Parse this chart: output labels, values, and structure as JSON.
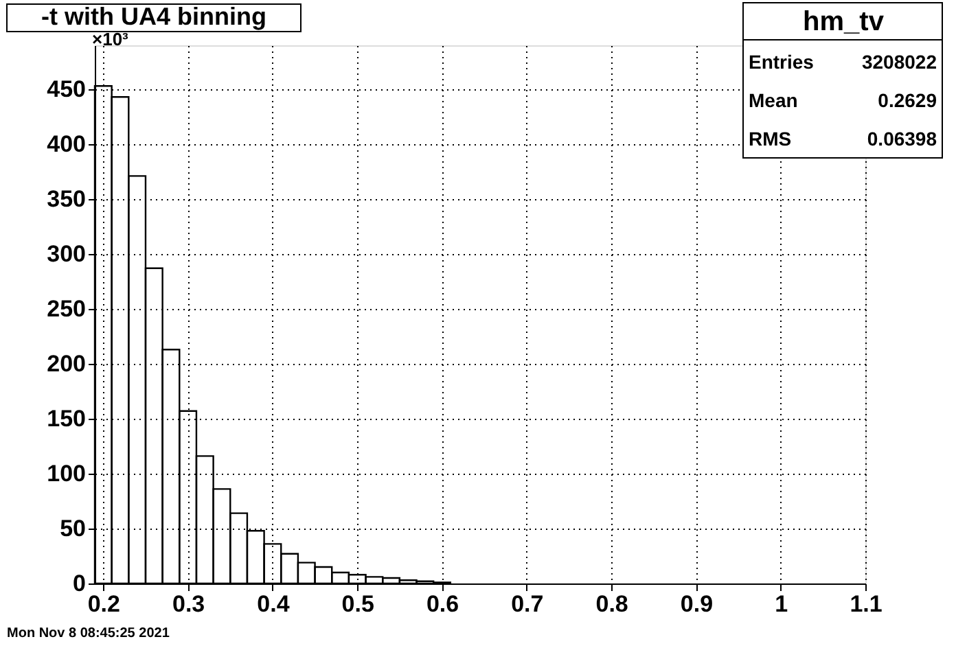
{
  "chart_data": {
    "type": "histogram",
    "title": "-t with UA4 binning",
    "bins": [
      0.19,
      0.21,
      0.23,
      0.25,
      0.27,
      0.29,
      0.31,
      0.33,
      0.35,
      0.37,
      0.39,
      0.41,
      0.43,
      0.45,
      0.47,
      0.49,
      0.51,
      0.53,
      0.55,
      0.57,
      0.59,
      0.61
    ],
    "values": [
      453,
      443,
      371,
      287,
      213,
      157,
      116,
      86,
      64,
      48,
      36,
      27,
      19,
      15,
      10,
      8,
      6,
      5,
      3,
      2,
      1
    ],
    "color": "#000000",
    "xlim": [
      0.19,
      1.1
    ],
    "xticks": [
      0.2,
      0.3,
      0.4,
      0.5,
      0.6,
      0.7,
      0.8,
      0.9,
      1,
      1.1
    ],
    "ylim": [
      0,
      490
    ],
    "yticks": [
      0,
      50,
      100,
      150,
      200,
      250,
      300,
      350,
      400,
      450
    ],
    "grid": true,
    "annotations": [
      "×10³",
      "hm_tv",
      "Entries",
      "3208022",
      "Mean",
      "0.2629",
      "RMS",
      "0.06398",
      "Mon Nov  8 08:45:25 2021"
    ]
  }
}
